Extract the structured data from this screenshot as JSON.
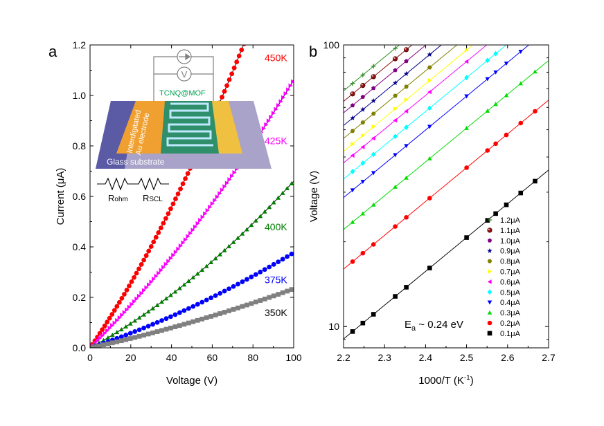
{
  "chart_data": [
    {
      "type": "scatter",
      "panel": "a",
      "xlabel": "Voltage (V)",
      "ylabel": "Current (μA)",
      "xlim": [
        0,
        100
      ],
      "ylim": [
        0,
        1.2
      ],
      "xticks": [
        0,
        20,
        40,
        60,
        80,
        100
      ],
      "yticks": [
        0.0,
        0.2,
        0.4,
        0.6,
        0.8,
        1.0,
        1.2
      ],
      "ytick_labels": [
        "0.0",
        "0.2",
        "0.4",
        "0.6",
        "0.8",
        "1.0",
        "1.2"
      ],
      "series": [
        {
          "name": "450K",
          "label_value": 1.15,
          "color": "#ff0000",
          "marker": "circle",
          "coef": [
            0.0117,
            5.6e-05
          ]
        },
        {
          "name": "425K",
          "label_value": 0.82,
          "color": "#ff00ff",
          "marker": "triangle-right",
          "coef": [
            0.0079,
            2.7e-05
          ]
        },
        {
          "name": "400K",
          "label_value": 0.48,
          "color": "#008000",
          "marker": "triangle-up",
          "coef": [
            0.0044,
            2.2e-05
          ]
        },
        {
          "name": "375K",
          "label_value": 0.27,
          "color": "#0000ff",
          "marker": "circle",
          "coef": [
            0.0027,
            1.07e-05
          ]
        },
        {
          "name": "350K",
          "label_value": 0.14,
          "color": "#808080",
          "marker": "square",
          "coef": [
            0.00175,
            5.9e-06
          ]
        }
      ],
      "inset": {
        "top_label": "TCNQ@MOF",
        "electrode_label": "Interdigitated\nAu electrode",
        "substrate_label": "Glass substrate",
        "voltmeter_symbol": "V",
        "resistor_labels": [
          "Rohm",
          "RSCL"
        ]
      }
    },
    {
      "type": "scatter",
      "panel": "b",
      "xlabel": "1000/T (K",
      "xlabel_sup": "-1",
      "xlabel_end": ")",
      "ylabel": "Voltage (V)",
      "yscale": "log",
      "xlim": [
        2.2,
        2.7
      ],
      "ylim": [
        8.4,
        100
      ],
      "xticks": [
        2.2,
        2.3,
        2.4,
        2.5,
        2.6,
        2.7
      ],
      "yticks_labeled": [
        10,
        100
      ],
      "annotation": "E",
      "annotation_sub": "a",
      "annotation_end": " ~ 0.24 eV",
      "x_points": [
        2.222,
        2.247,
        2.273,
        2.326,
        2.353,
        2.41,
        2.5,
        2.551,
        2.571,
        2.597,
        2.632,
        2.667
      ],
      "series": [
        {
          "name": "1.2μA",
          "color": "#2e8b22",
          "marker": "plus",
          "v0": 73.0
        },
        {
          "name": "1.1μA",
          "color": "#8b1010",
          "marker": "ball",
          "v0": 67.0
        },
        {
          "name": "1.0μA",
          "color": "#800080",
          "marker": "pentagon",
          "v0": 61.0
        },
        {
          "name": "0.9μA",
          "color": "#00008b",
          "marker": "star",
          "v0": 55.0
        },
        {
          "name": "0.8μA",
          "color": "#808000",
          "marker": "hexagon",
          "v0": 49.5
        },
        {
          "name": "0.7μA",
          "color": "#ffff00",
          "marker": "triangle-right",
          "v0": 44.5
        },
        {
          "name": "0.6μA",
          "color": "#ff00ff",
          "marker": "triangle-left",
          "v0": 40.5
        },
        {
          "name": "0.5μA",
          "color": "#00ffff",
          "marker": "diamond",
          "v0": 35.5
        },
        {
          "name": "0.4μA",
          "color": "#0000ff",
          "marker": "triangle-down",
          "v0": 30.5
        },
        {
          "name": "0.3μA",
          "color": "#00dd00",
          "marker": "triangle-up",
          "v0": 23.5
        },
        {
          "name": "0.2μA",
          "color": "#ff0000",
          "marker": "circle",
          "v0": 17.0
        },
        {
          "name": "0.1μA",
          "color": "#000000",
          "marker": "square",
          "v0": 9.6
        }
      ],
      "slope_per_unit_x": 1.2
    }
  ]
}
